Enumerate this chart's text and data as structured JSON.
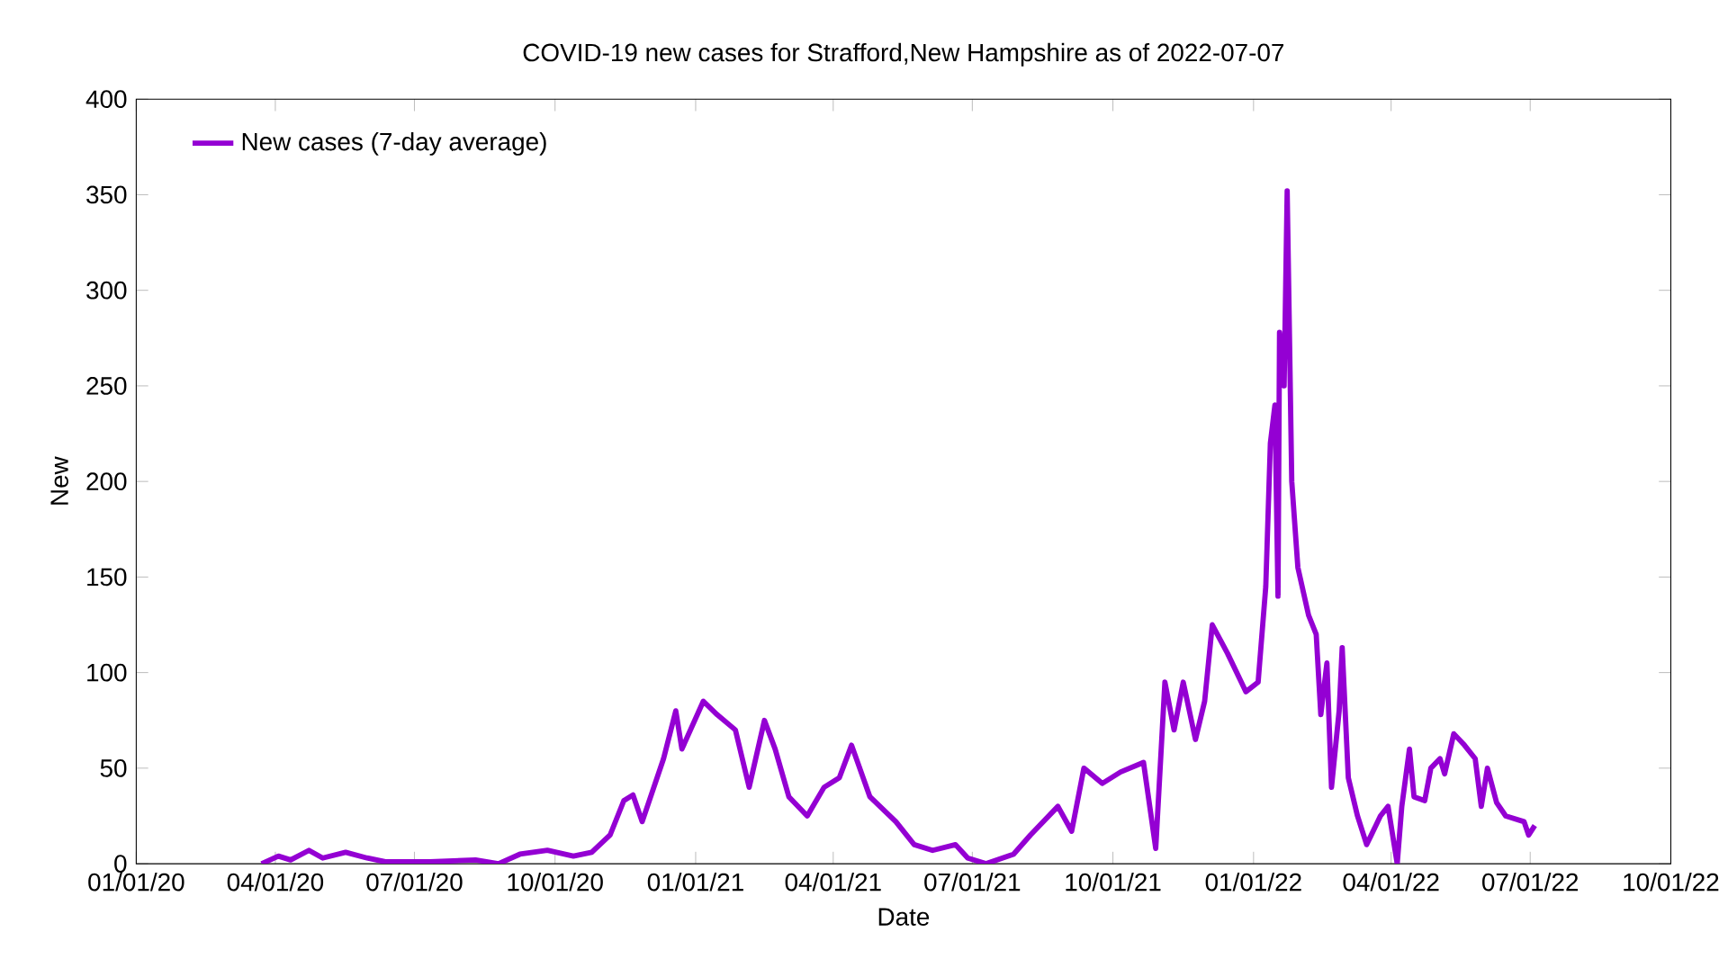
{
  "chart_data": {
    "type": "line",
    "title": "COVID-19 new cases for Strafford,New Hampshire as of 2022-07-07",
    "xlabel": "Date",
    "ylabel": "New",
    "x": [
      "2020-03-23",
      "2020-04-03",
      "2020-04-11",
      "2020-04-23",
      "2020-05-02",
      "2020-05-17",
      "2020-05-31",
      "2020-06-12",
      "2020-07-11",
      "2020-08-10",
      "2020-08-25",
      "2020-09-08",
      "2020-09-26",
      "2020-10-13",
      "2020-10-25",
      "2020-11-06",
      "2020-11-15",
      "2020-11-21",
      "2020-11-27",
      "2020-12-11",
      "2020-12-19",
      "2020-12-23",
      "2021-01-06",
      "2021-01-15",
      "2021-01-27",
      "2021-02-05",
      "2021-02-15",
      "2021-02-22",
      "2021-03-03",
      "2021-03-15",
      "2021-03-26",
      "2021-04-05",
      "2021-04-13",
      "2021-04-25",
      "2021-05-12",
      "2021-05-24",
      "2021-06-05",
      "2021-06-20",
      "2021-06-28",
      "2021-07-10",
      "2021-07-28",
      "2021-08-08",
      "2021-08-26",
      "2021-09-04",
      "2021-09-12",
      "2021-09-24",
      "2021-10-06",
      "2021-10-21",
      "2021-10-29",
      "2021-11-04",
      "2021-11-10",
      "2021-11-16",
      "2021-11-24",
      "2021-11-30",
      "2021-12-05",
      "2021-12-15",
      "2021-12-27",
      "2022-01-04",
      "2022-01-09",
      "2022-01-12",
      "2022-01-15",
      "2022-01-17",
      "2022-01-18",
      "2022-01-21",
      "2022-01-23",
      "2022-01-26",
      "2022-01-30",
      "2022-02-06",
      "2022-02-11",
      "2022-02-14",
      "2022-02-18",
      "2022-02-21",
      "2022-02-26",
      "2022-02-28",
      "2022-03-04",
      "2022-03-10",
      "2022-03-16",
      "2022-03-25",
      "2022-03-30",
      "2022-04-05",
      "2022-04-08",
      "2022-04-13",
      "2022-04-16",
      "2022-04-23",
      "2022-04-27",
      "2022-05-03",
      "2022-05-06",
      "2022-05-12",
      "2022-05-19",
      "2022-05-26",
      "2022-05-30",
      "2022-06-03",
      "2022-06-09",
      "2022-06-15",
      "2022-06-27",
      "2022-06-30",
      "2022-07-04"
    ],
    "series": [
      {
        "name": "New cases (7-day average)",
        "color": "#9400d3",
        "values": [
          0,
          4,
          2,
          7,
          3,
          6,
          3,
          1,
          1,
          2,
          0,
          5,
          7,
          4,
          6,
          15,
          33,
          36,
          22,
          55,
          80,
          60,
          85,
          78,
          70,
          40,
          75,
          60,
          35,
          25,
          40,
          45,
          62,
          35,
          22,
          10,
          7,
          10,
          3,
          0,
          5,
          15,
          30,
          17,
          50,
          42,
          48,
          53,
          8,
          95,
          70,
          95,
          65,
          85,
          125,
          110,
          90,
          95,
          145,
          220,
          240,
          140,
          278,
          250,
          352,
          200,
          155,
          130,
          120,
          78,
          105,
          40,
          80,
          113,
          45,
          25,
          10,
          25,
          30,
          0,
          30,
          60,
          35,
          33,
          50,
          55,
          47,
          68,
          62,
          55,
          30,
          50,
          32,
          25,
          22,
          15,
          20
        ]
      }
    ],
    "xlim": [
      "2020-01-01",
      "2022-10-01"
    ],
    "xticks": [
      {
        "value": "2020-01-01",
        "label": "01/01/20"
      },
      {
        "value": "2020-04-01",
        "label": "04/01/20"
      },
      {
        "value": "2020-07-01",
        "label": "07/01/20"
      },
      {
        "value": "2020-10-01",
        "label": "10/01/20"
      },
      {
        "value": "2021-01-01",
        "label": "01/01/21"
      },
      {
        "value": "2021-04-01",
        "label": "04/01/21"
      },
      {
        "value": "2021-07-01",
        "label": "07/01/21"
      },
      {
        "value": "2021-10-01",
        "label": "10/01/21"
      },
      {
        "value": "2022-01-01",
        "label": "01/01/22"
      },
      {
        "value": "2022-04-01",
        "label": "04/01/22"
      },
      {
        "value": "2022-07-01",
        "label": "07/01/22"
      },
      {
        "value": "2022-10-01",
        "label": "10/01/22"
      }
    ],
    "ylim": [
      0,
      400
    ],
    "yticks": [
      0,
      50,
      100,
      150,
      200,
      250,
      300,
      350,
      400
    ],
    "grid": false,
    "legend": "top left",
    "line_style": "solid",
    "marker": "none"
  }
}
